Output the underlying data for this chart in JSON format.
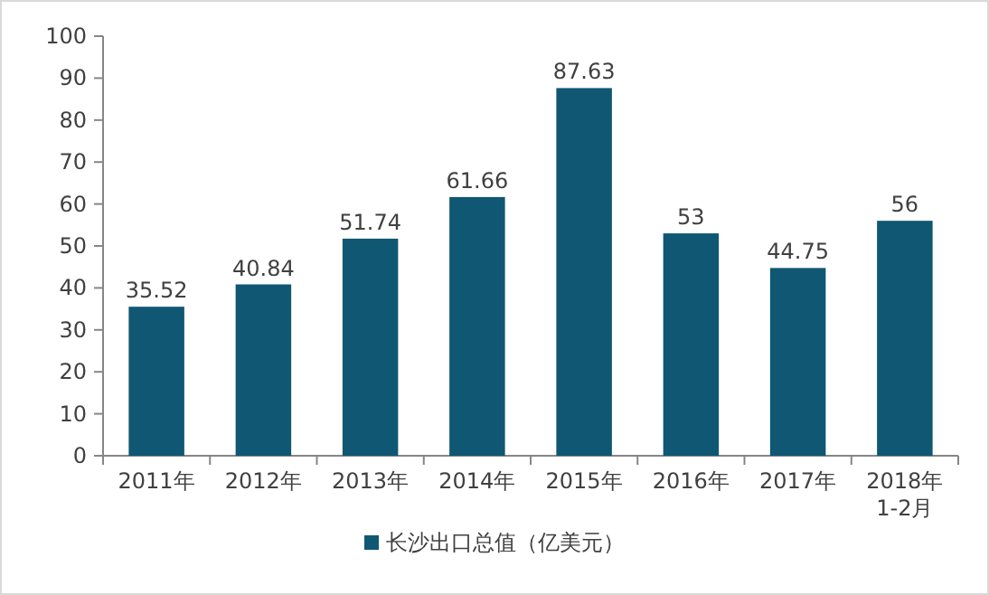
{
  "chart_data": {
    "type": "bar",
    "categories": [
      "2011年",
      "2012年",
      "2013年",
      "2014年",
      "2015年",
      "2016年",
      "2017年",
      "2018年\n1-2月"
    ],
    "series": [
      {
        "name": "长沙出口总值（亿美元）",
        "color": "#0f5772",
        "values": [
          35.52,
          40.84,
          51.74,
          61.66,
          87.63,
          53,
          44.75,
          56
        ]
      }
    ],
    "ylim": [
      0,
      100
    ],
    "yticks": [
      0,
      10,
      20,
      30,
      40,
      50,
      60,
      70,
      80,
      90,
      100
    ],
    "data_labels": true,
    "legend": "bottom",
    "grid": false
  }
}
